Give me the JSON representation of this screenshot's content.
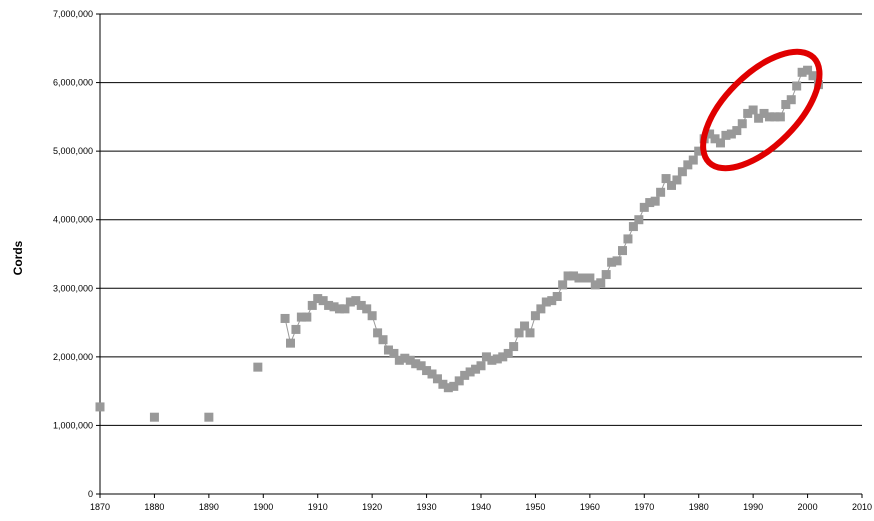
{
  "chart_data": {
    "type": "scatter",
    "title": "",
    "xlabel": "",
    "ylabel": "Cords",
    "xlim": [
      1870,
      2010
    ],
    "ylim": [
      0,
      7000000
    ],
    "x_ticks": [
      1870,
      1880,
      1890,
      1900,
      1910,
      1920,
      1930,
      1940,
      1950,
      1960,
      1970,
      1980,
      1990,
      2000,
      2010
    ],
    "x_tick_labels": [
      "1870",
      "1880",
      "1890",
      "1900",
      "1910",
      "1920",
      "1930",
      "1940",
      "1950",
      "1960",
      "1970",
      "1980",
      "1990",
      "2000",
      "2010"
    ],
    "y_ticks": [
      0,
      1000000,
      2000000,
      3000000,
      4000000,
      5000000,
      6000000,
      7000000
    ],
    "y_tick_labels": [
      "0",
      "1,000,000",
      "2,000,000",
      "3,000,000",
      "4,000,000",
      "5,000,000",
      "6,000,000",
      "7,000,000"
    ],
    "grid": "horizontal",
    "marker_color": "#999999",
    "highlight_color": "#e00000",
    "highlight": {
      "x_range": [
        1981,
        2002
      ],
      "y_range": [
        5000000,
        6200000
      ]
    },
    "series": [
      {
        "x": [
          1870,
          1880,
          1890,
          1899,
          1904,
          1905,
          1906,
          1907,
          1908,
          1909,
          1910,
          1911,
          1912,
          1913,
          1914,
          1915,
          1916,
          1917,
          1918,
          1919,
          1920,
          1921,
          1922,
          1923,
          1924,
          1925,
          1926,
          1927,
          1928,
          1929,
          1930,
          1931,
          1932,
          1933,
          1934,
          1935,
          1936,
          1937,
          1938,
          1939,
          1940,
          1941,
          1942,
          1943,
          1944,
          1945,
          1946,
          1947,
          1948,
          1949,
          1950,
          1951,
          1952,
          1953,
          1954,
          1955,
          1956,
          1957,
          1958,
          1959,
          1960,
          1961,
          1962,
          1963,
          1964,
          1965,
          1966,
          1967,
          1968,
          1969,
          1970,
          1971,
          1972,
          1973,
          1974,
          1975,
          1976,
          1977,
          1978,
          1979,
          1980,
          1981,
          1982,
          1983,
          1984,
          1985,
          1986,
          1987,
          1988,
          1989,
          1990,
          1991,
          1992,
          1993,
          1994,
          1995,
          1996,
          1997,
          1998,
          1999,
          2000,
          2001,
          2002
        ],
        "y": [
          1270000,
          1120000,
          1120000,
          1850000,
          2560000,
          2200000,
          2400000,
          2580000,
          2580000,
          2750000,
          2850000,
          2820000,
          2750000,
          2730000,
          2700000,
          2700000,
          2800000,
          2820000,
          2750000,
          2700000,
          2600000,
          2350000,
          2250000,
          2100000,
          2050000,
          1950000,
          1980000,
          1950000,
          1900000,
          1870000,
          1800000,
          1750000,
          1680000,
          1600000,
          1550000,
          1570000,
          1650000,
          1730000,
          1780000,
          1820000,
          1870000,
          2000000,
          1950000,
          1970000,
          2000000,
          2050000,
          2150000,
          2350000,
          2450000,
          2350000,
          2600000,
          2700000,
          2800000,
          2820000,
          2880000,
          3050000,
          3180000,
          3180000,
          3150000,
          3150000,
          3150000,
          3050000,
          3080000,
          3200000,
          3380000,
          3400000,
          3550000,
          3720000,
          3900000,
          4000000,
          4180000,
          4250000,
          4270000,
          4400000,
          4600000,
          4500000,
          4580000,
          4700000,
          4800000,
          4870000,
          5000000,
          5180000,
          5250000,
          5180000,
          5120000,
          5230000,
          5250000,
          5300000,
          5400000,
          5550000,
          5600000,
          5480000,
          5550000,
          5500000,
          5500000,
          5500000,
          5680000,
          5750000,
          5950000,
          6150000,
          6180000,
          6100000,
          5970000
        ]
      }
    ]
  }
}
